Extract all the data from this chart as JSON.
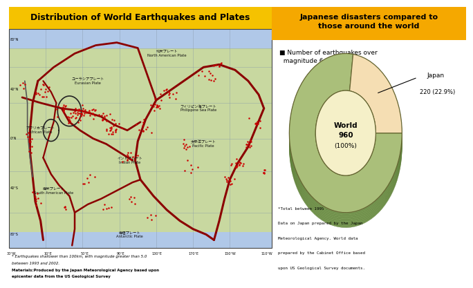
{
  "left_title": "Distribution of World Earthquakes and Plates",
  "left_title_bg": "#F5C200",
  "right_title": "Japanese disasters compared to\nthose around the world",
  "right_title_bg": "#F5A800",
  "right_subtitle": "■ Number of earthquakes over\n  magnitude 6.0",
  "pie_japan_value": 220,
  "pie_japan_pct": "22.9%",
  "pie_world_value": 960,
  "pie_world_pct": "100%",
  "pie_japan_color": "#F5DEB3",
  "pie_rest_color": "#AABF7A",
  "pie_center_color": "#F5F0C8",
  "donut_edge_color": "#666633",
  "left_footnote1": "* Earthquakes shallower than 100km, with magnitude greater than 5.0",
  "left_footnote2": "between 1993 and 2002.",
  "left_footnote3": "Materials:Produced by the Japan Meteorological Agency based upon",
  "left_footnote4": "epicenter data from the US Geological Survey",
  "right_footnote1": "*Total between 1995 and 2004.",
  "right_footnote2": "Data on Japan prepared by the Japan",
  "right_footnote3": "Meteorological Agency. World data",
  "right_footnote4": "prepared by the Cabinet Office based",
  "right_footnote5": "upon US Geological Survey documents.",
  "map_bg": "#C8D8A0",
  "map_ocean": "#B0C8E8",
  "map_grid_color": "#8899AA",
  "right_panel_bg": "#FFFFFF",
  "plate_line_color": "#8B0000",
  "plate_border_color": "#222222"
}
